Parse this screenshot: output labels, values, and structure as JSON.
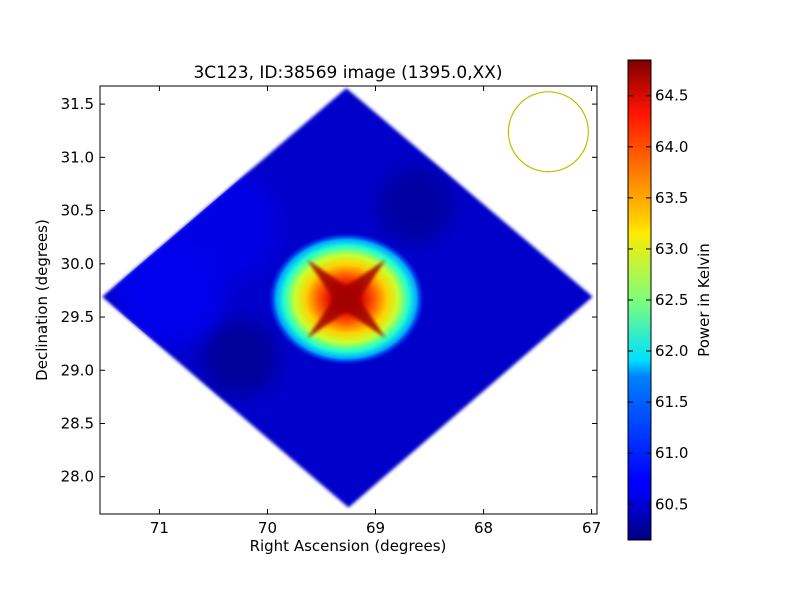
{
  "chart_data": {
    "type": "heatmap",
    "title": "3C123, ID:38569 image (1395.0,XX)",
    "xlabel": "Right Ascension (degrees)",
    "ylabel": "Declination (degrees)",
    "xlim": [
      71.55,
      66.95
    ],
    "ylim": [
      27.65,
      31.67
    ],
    "x_ticks": [
      71,
      70,
      69,
      68,
      67
    ],
    "x_tick_labels": [
      "71",
      "70",
      "69",
      "68",
      "67"
    ],
    "y_ticks": [
      28.0,
      28.5,
      29.0,
      29.5,
      30.0,
      30.5,
      31.0,
      31.5
    ],
    "y_tick_labels": [
      "28.0",
      "28.5",
      "29.0",
      "29.5",
      "30.0",
      "30.5",
      "31.0",
      "31.5"
    ],
    "grid": false,
    "footprint": {
      "shape": "rotated-square",
      "center_ra": 69.28,
      "center_dec": 29.69,
      "corners": [
        {
          "ra": 69.27,
          "dec": 31.65
        },
        {
          "ra": 66.99,
          "dec": 29.69
        },
        {
          "ra": 69.25,
          "dec": 27.71
        },
        {
          "ra": 71.53,
          "dec": 29.69
        }
      ]
    },
    "background_power": 60.5,
    "peak": {
      "ra": 69.27,
      "dec": 29.67,
      "power": 64.85
    },
    "features": [
      {
        "kind": "hot-source",
        "ra": 69.27,
        "dec": 29.67,
        "power": 64.85
      },
      {
        "kind": "cold-spot",
        "ra": 70.25,
        "dec": 29.12,
        "power": 60.2
      },
      {
        "kind": "cold-spot",
        "ra": 68.63,
        "dec": 30.55,
        "power": 60.25
      },
      {
        "kind": "warm-region",
        "ra": 70.9,
        "dec": 29.75,
        "power": 60.7
      },
      {
        "kind": "warm-region",
        "ra": 70.4,
        "dec": 30.35,
        "power": 60.65
      }
    ],
    "beam": {
      "ra": 67.4,
      "dec": 31.24,
      "radius_deg": 0.37,
      "color": "#bfbf00"
    },
    "colorbar": {
      "label": "Power in Kelvin",
      "min": 60.15,
      "max": 64.85,
      "ticks": [
        60.5,
        61.0,
        61.5,
        62.0,
        62.5,
        63.0,
        63.5,
        64.0,
        64.5
      ],
      "tick_labels": [
        "60.5",
        "61.0",
        "61.5",
        "62.0",
        "62.5",
        "63.0",
        "63.5",
        "64.0",
        "64.5"
      ],
      "colormap": "jet"
    }
  }
}
